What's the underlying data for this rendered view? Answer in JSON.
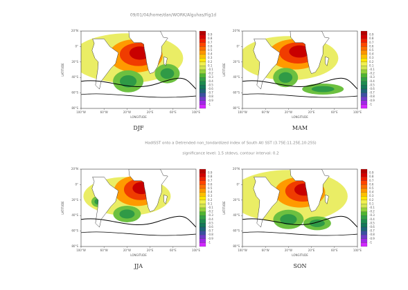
{
  "header": "09/01/04/home/dan/WORK/Alguhas/Fig1d",
  "caption": [
    "HadISST onto a  Detrended non_tondardized index of South Atl SST (3.75E:11.25E,10:25S)",
    "significance level: 1.5 stdevs, contour interval: 0.2"
  ],
  "panels": [
    {
      "title": "DJF"
    },
    {
      "title": "MAM"
    },
    {
      "title": "JJA"
    },
    {
      "title": "SON"
    }
  ],
  "axes": {
    "ylabel": "LATITUDE",
    "xlabel": "LONGITUDE",
    "lat_ticks": [
      "20°N",
      "0°",
      "20°S",
      "40°S",
      "60°S",
      "80°S"
    ],
    "lon_ticks": [
      "100°W",
      "60°W",
      "20°W",
      "20°E",
      "60°E",
      "100°E"
    ]
  },
  "colorbar": {
    "labels": [
      "0.9",
      "0.8",
      "0.7",
      "0.6",
      "0.5",
      "0.4",
      "0.3",
      "0.2",
      "0.1",
      "-0.1",
      "-0.2",
      "-0.3",
      "-0.4",
      "-0.5",
      "-0.6",
      "-0.7",
      "-0.8",
      "-0.9",
      "-1"
    ]
  }
}
